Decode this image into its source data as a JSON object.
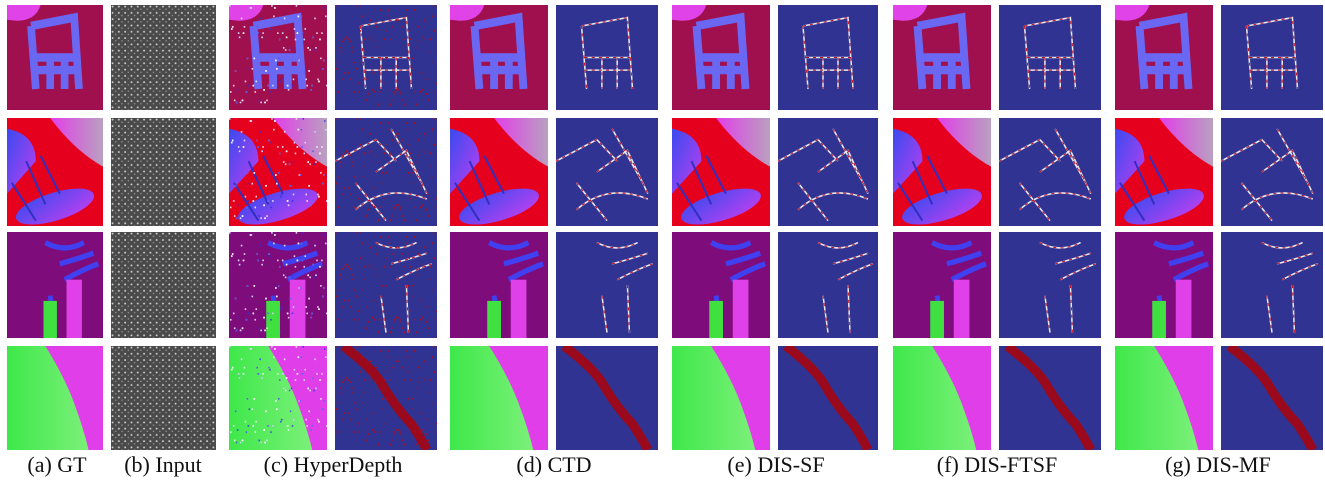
{
  "figure": {
    "captions": [
      "(a) GT",
      "(b) Input",
      "(c) HyperDepth",
      "(d) CTD",
      "(e) DIS-SF",
      "(f) DIS-FTSF",
      "(g) DIS-MF"
    ]
  }
}
